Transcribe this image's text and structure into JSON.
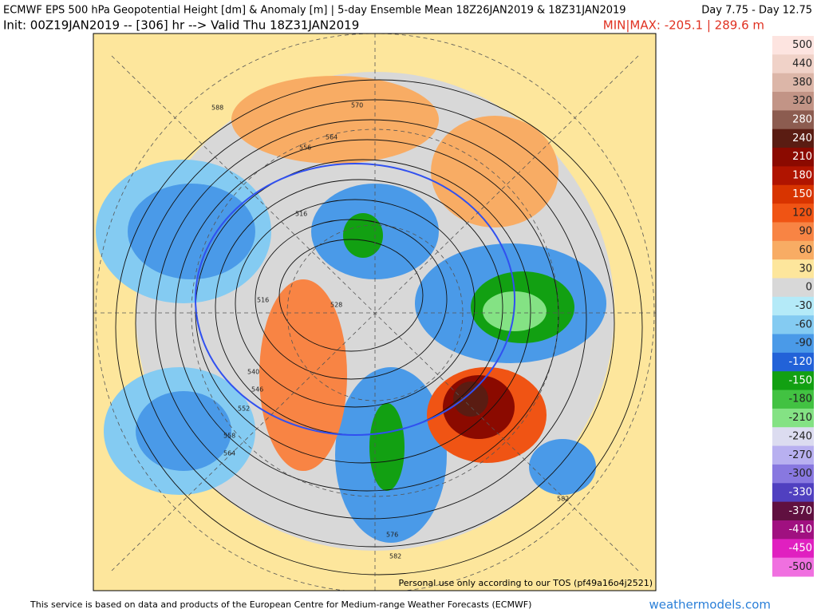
{
  "header": {
    "title": "ECMWF EPS 500 hPa Geopotential Height [dm] & Anomaly [m] | 5-day Ensemble Mean 18Z26JAN2019 & 18Z31JAN2019",
    "day_range": "Day 7.75 - Day 12.75",
    "init": "Init: 00Z19JAN2019 -- [306] hr --> Valid Thu 18Z31JAN2019",
    "minmax": "MIN|MAX: -205.1 | 289.6 m"
  },
  "map": {
    "contour_labels": [
      588,
      570,
      564,
      556,
      516,
      528,
      516,
      540,
      546,
      552,
      558,
      564,
      576,
      582,
      582
    ]
  },
  "colorbar": {
    "levels": [
      500,
      440,
      380,
      320,
      280,
      240,
      210,
      180,
      150,
      120,
      90,
      60,
      30,
      0,
      -30,
      -60,
      -90,
      -120,
      -150,
      -180,
      -210,
      -240,
      -270,
      -300,
      -330,
      -370,
      -410,
      -450,
      -500
    ],
    "colors": [
      "#fde4e0",
      "#f0d2c8",
      "#dcb6a8",
      "#c29486",
      "#8c5c50",
      "#5a1c12",
      "#8b0a00",
      "#b01400",
      "#d83400",
      "#f05414",
      "#f88444",
      "#f8ac64",
      "#fde69c",
      "#d8d8d8",
      "#b4eaf8",
      "#84cbf2",
      "#4a9ae8",
      "#2262d8",
      "#12a012",
      "#42c242",
      "#84e284",
      "#dcdcf0",
      "#b8b0f0",
      "#8878e0",
      "#5040c0",
      "#601040",
      "#a01080",
      "#e020c0",
      "#f070e0"
    ]
  },
  "watermark": "Personal use only according to our TOS (pf49a16o4j2521)",
  "footer": {
    "credit": "This service is based on data and products of the European Centre for Medium-range Weather Forecasts (ECMWF)",
    "site": "weathermodels.com"
  }
}
